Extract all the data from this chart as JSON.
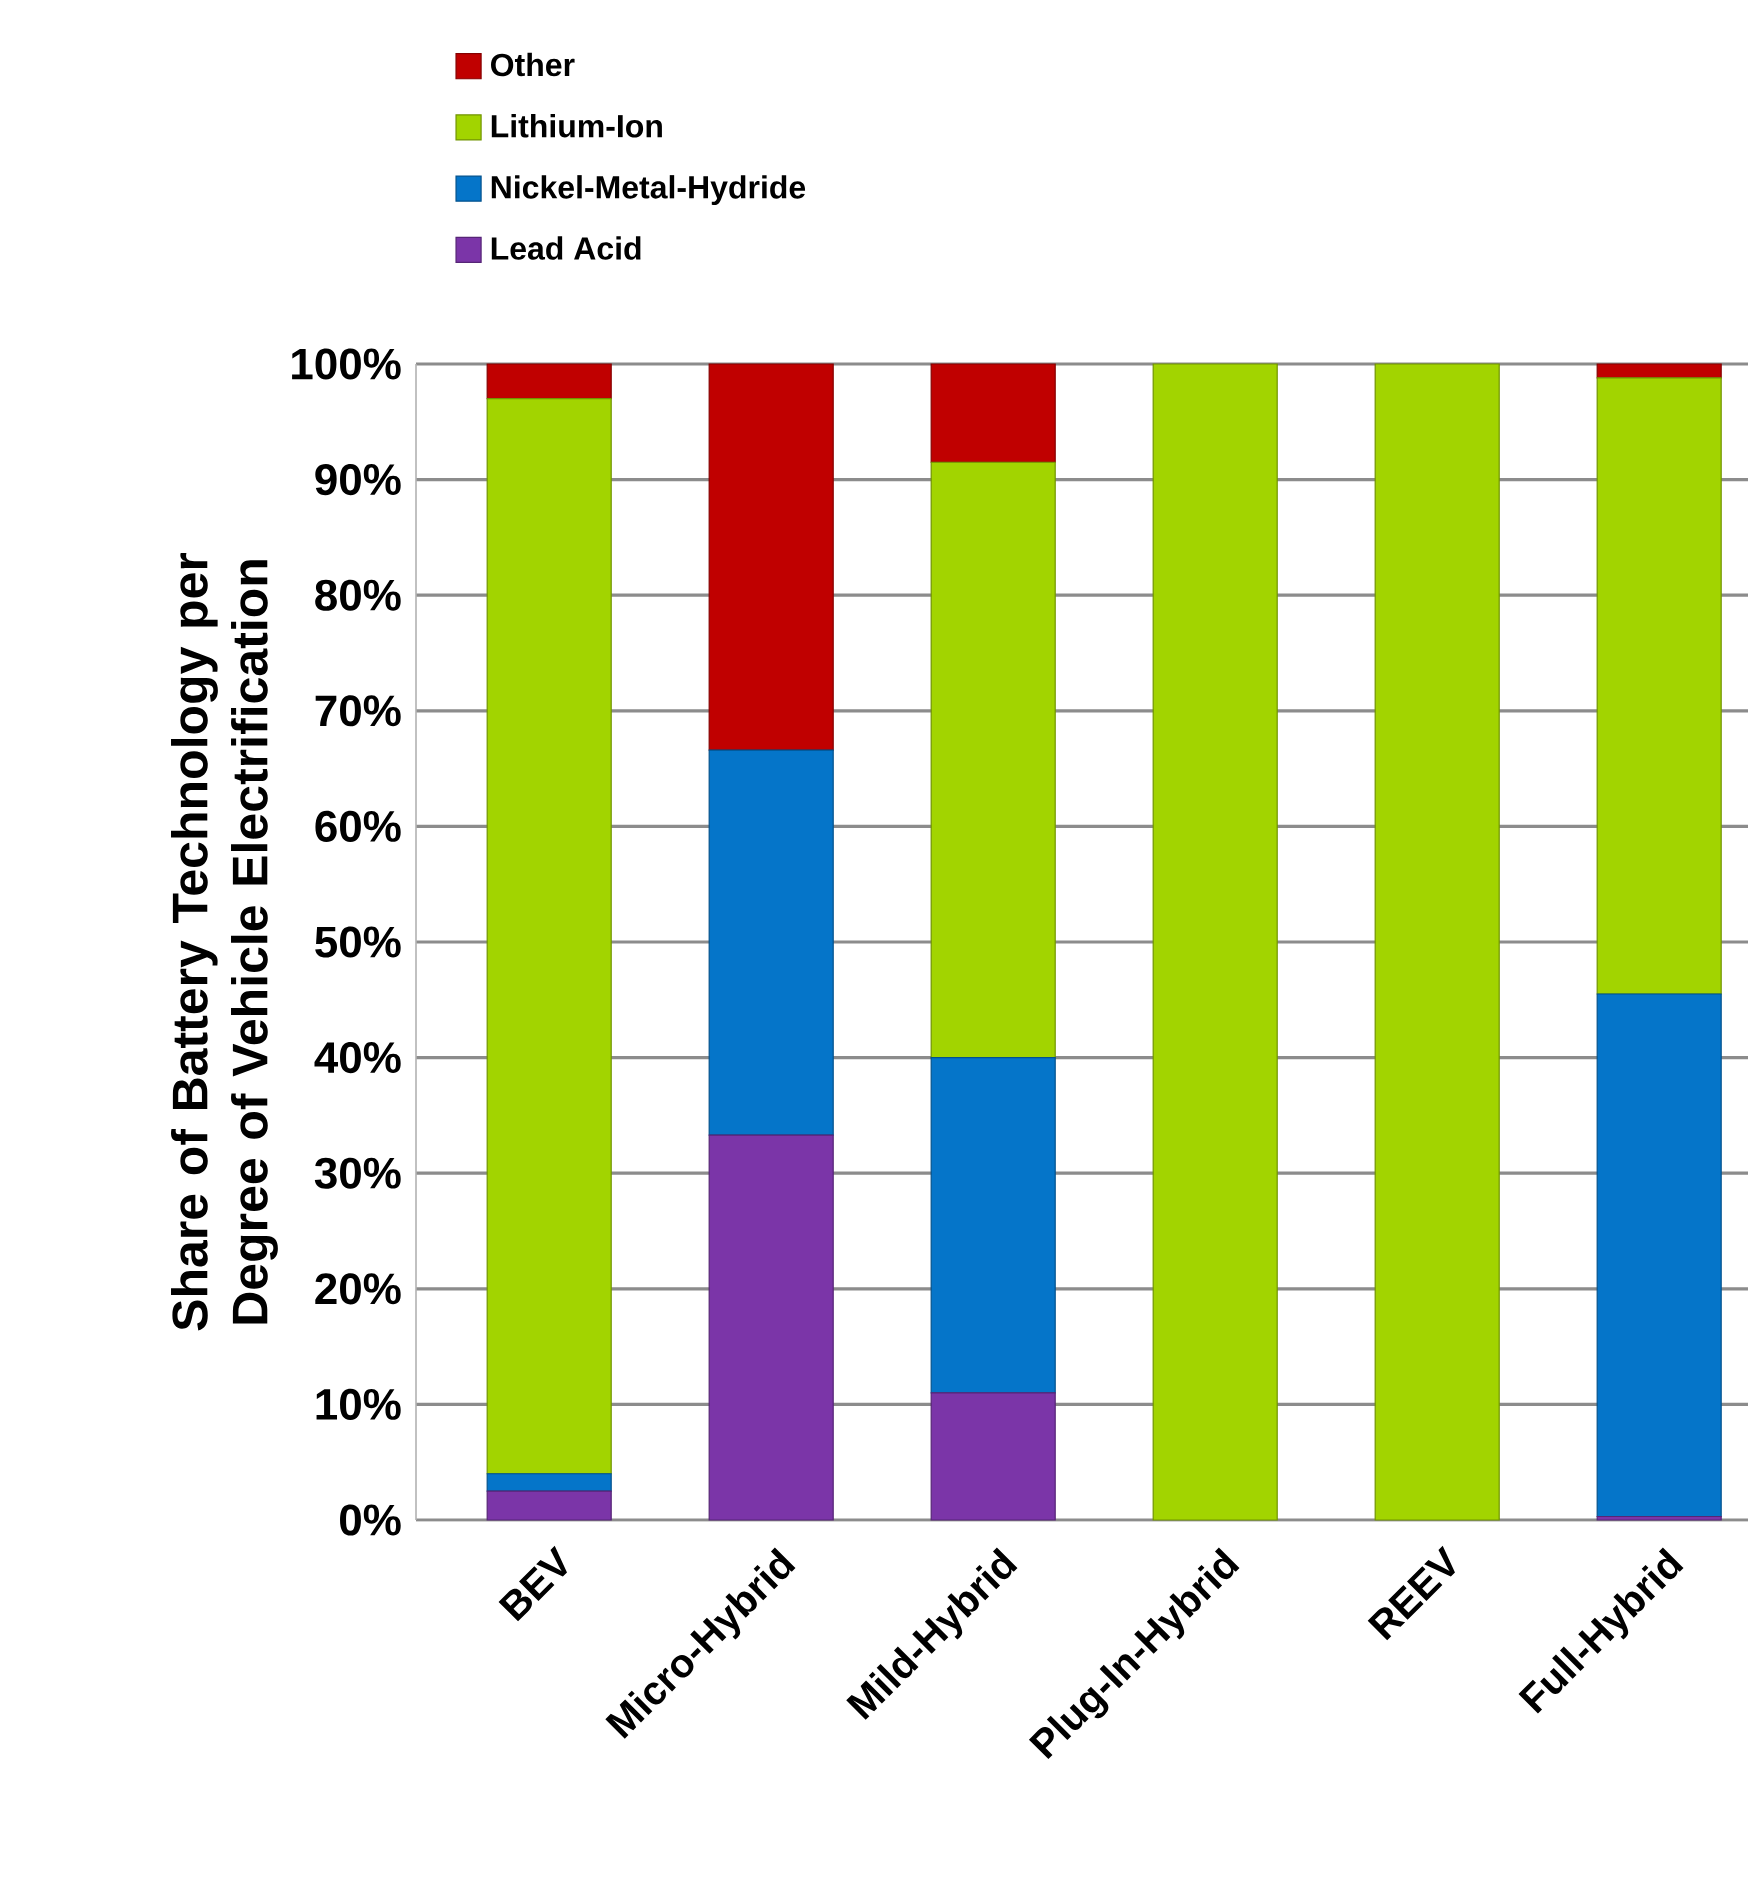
{
  "chart_data": {
    "type": "bar",
    "stacked": true,
    "ylabel": "Share of Battery Technology per Degree of Vehicle Electrification",
    "categories": [
      "BEV",
      "Micro-Hybrid",
      "Mild-Hybrid",
      "Plug-In-Hybrid",
      "REEV",
      "Full-Hybrid"
    ],
    "series": [
      {
        "name": "Lead Acid",
        "color": "#7b35a8",
        "values": [
          2.5,
          33.3,
          11,
          0,
          0,
          0.3
        ]
      },
      {
        "name": "Nickel-Metal-Hydride",
        "color": "#0575c9",
        "values": [
          1.5,
          33.3,
          29,
          0,
          0,
          45.2
        ]
      },
      {
        "name": "Lithium-Ion",
        "color": "#a2d400",
        "values": [
          93,
          0,
          51.5,
          100,
          100,
          53.3
        ]
      },
      {
        "name": "Other",
        "color": "#c00000",
        "values": [
          3,
          33.4,
          8.5,
          0,
          0,
          1.2
        ]
      }
    ],
    "ylim": [
      0,
      100
    ],
    "yticks": [
      {
        "value": 0,
        "label": "0%"
      },
      {
        "value": 10,
        "label": "10%"
      },
      {
        "value": 20,
        "label": "20%"
      },
      {
        "value": 30,
        "label": "30%"
      },
      {
        "value": 40,
        "label": "40%"
      },
      {
        "value": 50,
        "label": "50%"
      },
      {
        "value": 60,
        "label": "60%"
      },
      {
        "value": 70,
        "label": "70%"
      },
      {
        "value": 80,
        "label": "80%"
      },
      {
        "value": 90,
        "label": "90%"
      },
      {
        "value": 100,
        "label": "100%"
      }
    ],
    "grid": "y",
    "legend": "top"
  }
}
